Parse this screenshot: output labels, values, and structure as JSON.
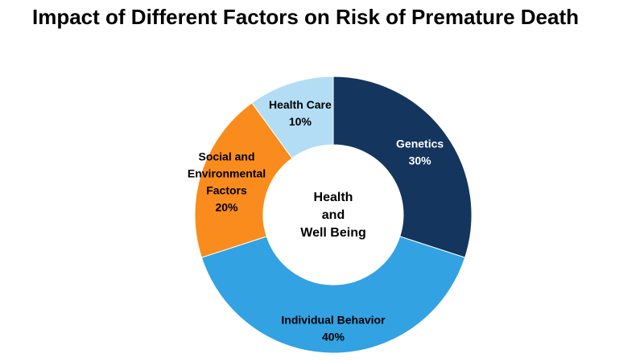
{
  "chart_data": {
    "type": "pie",
    "title": "Impact of Different Factors on Risk of Premature Death",
    "center_label": [
      "Health",
      "and",
      "Well Being"
    ],
    "slices": [
      {
        "label": [
          "Genetics"
        ],
        "value_label": "30%",
        "value": 30,
        "color": "#14355e",
        "text_color": "#ffffff"
      },
      {
        "label": [
          "Individual Behavior"
        ],
        "value_label": "40%",
        "value": 40,
        "color": "#32a2e2",
        "text_color": "#000000"
      },
      {
        "label": [
          "Social and",
          "Environmental",
          "Factors"
        ],
        "value_label": "20%",
        "value": 20,
        "color": "#f98c1c",
        "text_color": "#000000"
      },
      {
        "label": [
          "Health Care"
        ],
        "value_label": "10%",
        "value": 10,
        "color": "#b2ddf5",
        "text_color": "#000000"
      }
    ]
  }
}
